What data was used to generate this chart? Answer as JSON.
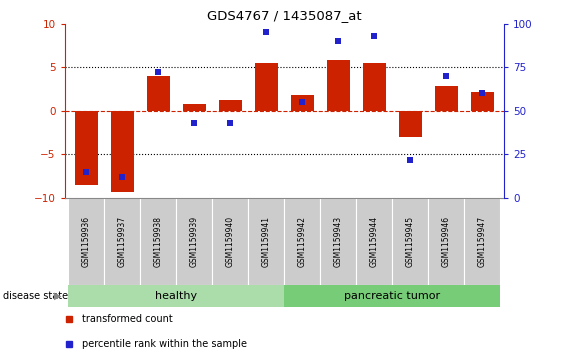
{
  "title": "GDS4767 / 1435087_at",
  "samples": [
    "GSM1159936",
    "GSM1159937",
    "GSM1159938",
    "GSM1159939",
    "GSM1159940",
    "GSM1159941",
    "GSM1159942",
    "GSM1159943",
    "GSM1159944",
    "GSM1159945",
    "GSM1159946",
    "GSM1159947"
  ],
  "transformed_count": [
    -8.5,
    -9.3,
    4.0,
    0.8,
    1.2,
    5.5,
    1.8,
    5.8,
    5.5,
    -3.0,
    2.8,
    2.2
  ],
  "percentile_rank": [
    15,
    12,
    72,
    43,
    43,
    95,
    55,
    90,
    93,
    22,
    70,
    60
  ],
  "bar_color": "#cc2200",
  "dot_color": "#2222cc",
  "healthy_color": "#aaddaa",
  "tumor_color": "#77cc77",
  "tick_label_bg": "#cccccc",
  "ylim_left": [
    -10,
    10
  ],
  "ylim_right": [
    0,
    100
  ],
  "yticks_left": [
    -10,
    -5,
    0,
    5,
    10
  ],
  "yticks_right": [
    0,
    25,
    50,
    75,
    100
  ],
  "n_healthy": 6,
  "n_tumor": 6,
  "healthy_label": "healthy",
  "tumor_label": "pancreatic tumor",
  "disease_state_label": "disease state",
  "legend1": "transformed count",
  "legend2": "percentile rank within the sample",
  "dotted_lines": [
    -5,
    0,
    5
  ],
  "bar_width": 0.65
}
